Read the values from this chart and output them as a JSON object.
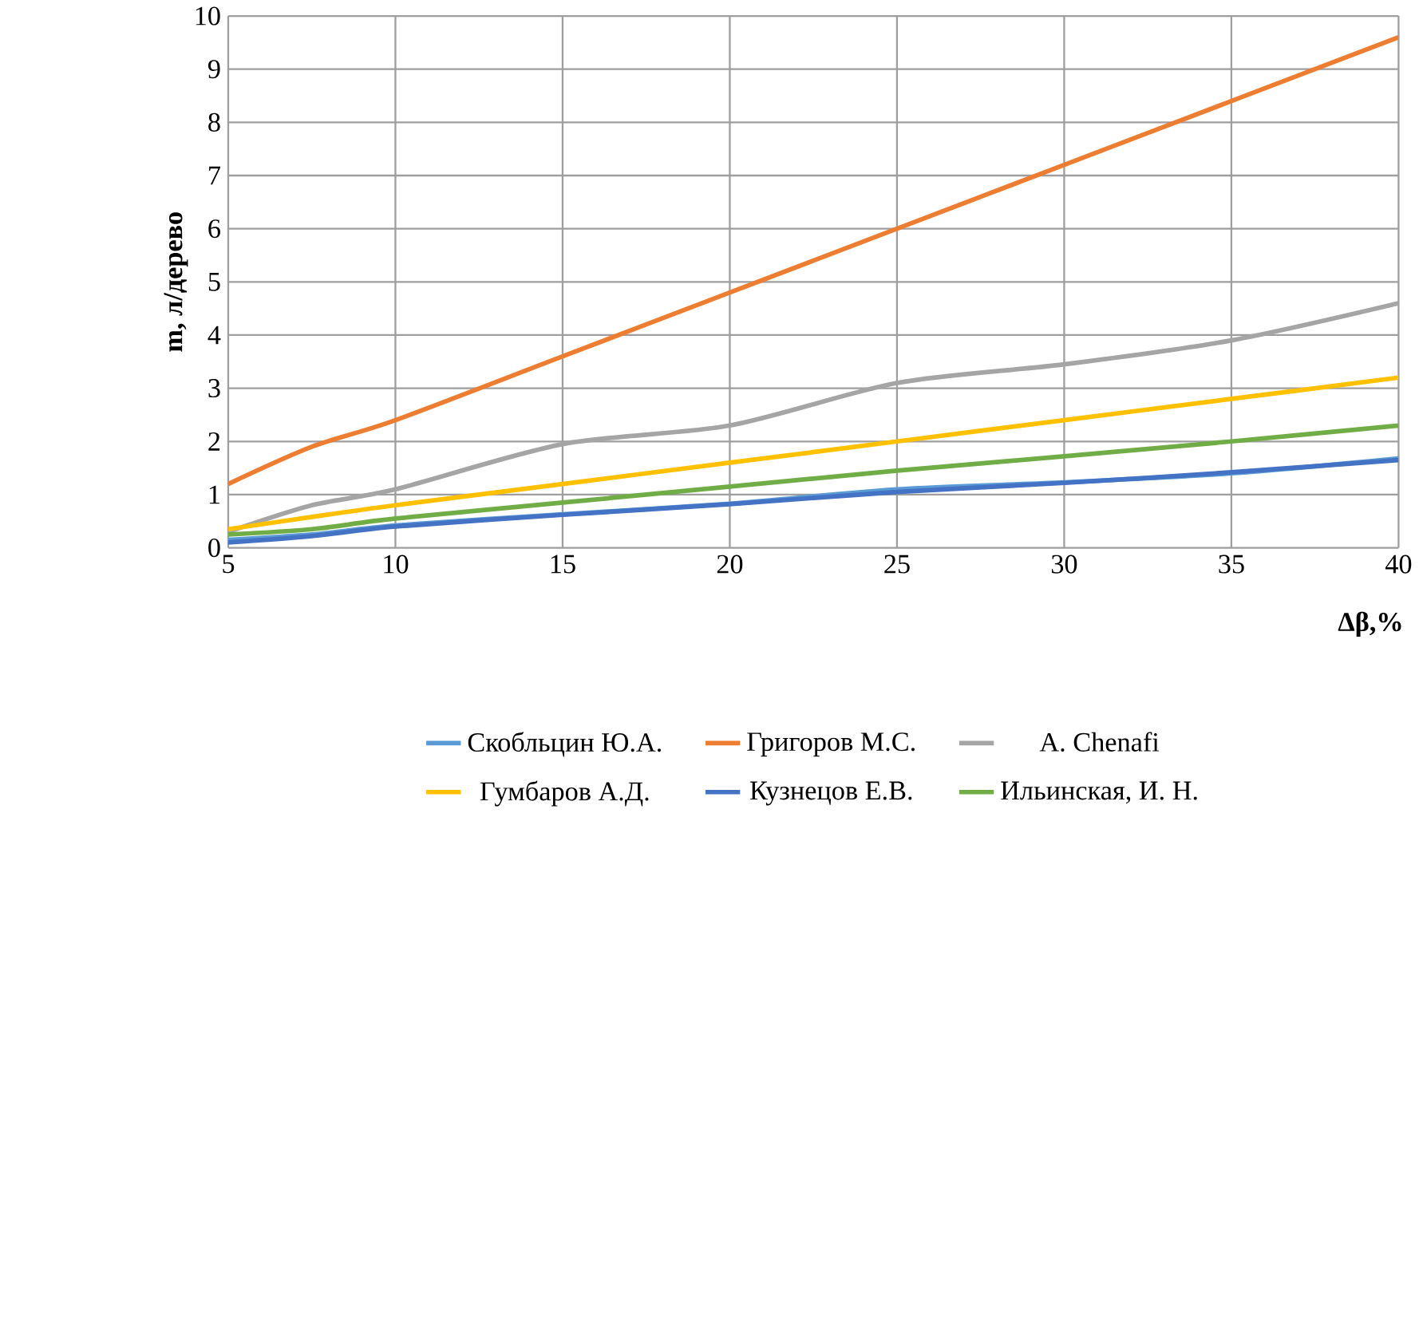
{
  "chart_data": {
    "type": "line",
    "xlabel": "Δβ,%",
    "ylabel": "m, л/дерево",
    "xlim": [
      5,
      40
    ],
    "xticks": [
      5,
      10,
      15,
      20,
      25,
      30,
      35,
      40
    ],
    "ylim": [
      0,
      10
    ],
    "yticks": [
      0,
      1,
      2,
      3,
      4,
      5,
      6,
      7,
      8,
      9,
      10
    ],
    "grid": true,
    "legend": "bottom",
    "marker": "none",
    "line_style": "solid",
    "x": [
      5,
      7.5,
      10,
      15,
      20,
      25,
      30,
      35,
      40
    ],
    "series": [
      {
        "name": "Скобльцин Ю.А.",
        "color": "#5b9bd5",
        "values": [
          0.15,
          0.25,
          0.42,
          0.63,
          0.83,
          1.1,
          1.23,
          1.4,
          1.68
        ]
      },
      {
        "name": "Григоров М.С.",
        "color": "#ed7d31",
        "values": [
          1.2,
          1.9,
          2.4,
          3.6,
          4.8,
          6.0,
          7.2,
          8.4,
          9.6
        ]
      },
      {
        "name": "A. Chenafi",
        "color": "#a5a5a5",
        "values": [
          0.3,
          0.8,
          1.1,
          1.95,
          2.3,
          3.1,
          3.45,
          3.9,
          4.6
        ]
      },
      {
        "name": "Гумбаров А.Д.",
        "color": "#ffc000",
        "values": [
          0.35,
          0.58,
          0.8,
          1.2,
          1.6,
          2.0,
          2.4,
          2.8,
          3.2
        ]
      },
      {
        "name": "Кузнецов Е.В.",
        "color": "#4472c4",
        "values": [
          0.1,
          0.22,
          0.4,
          0.62,
          0.82,
          1.05,
          1.22,
          1.42,
          1.65
        ]
      },
      {
        "name": "Ильинская, И. Н.",
        "color": "#70ad47",
        "values": [
          0.25,
          0.35,
          0.55,
          0.85,
          1.15,
          1.45,
          1.72,
          2.0,
          2.3
        ]
      }
    ]
  }
}
